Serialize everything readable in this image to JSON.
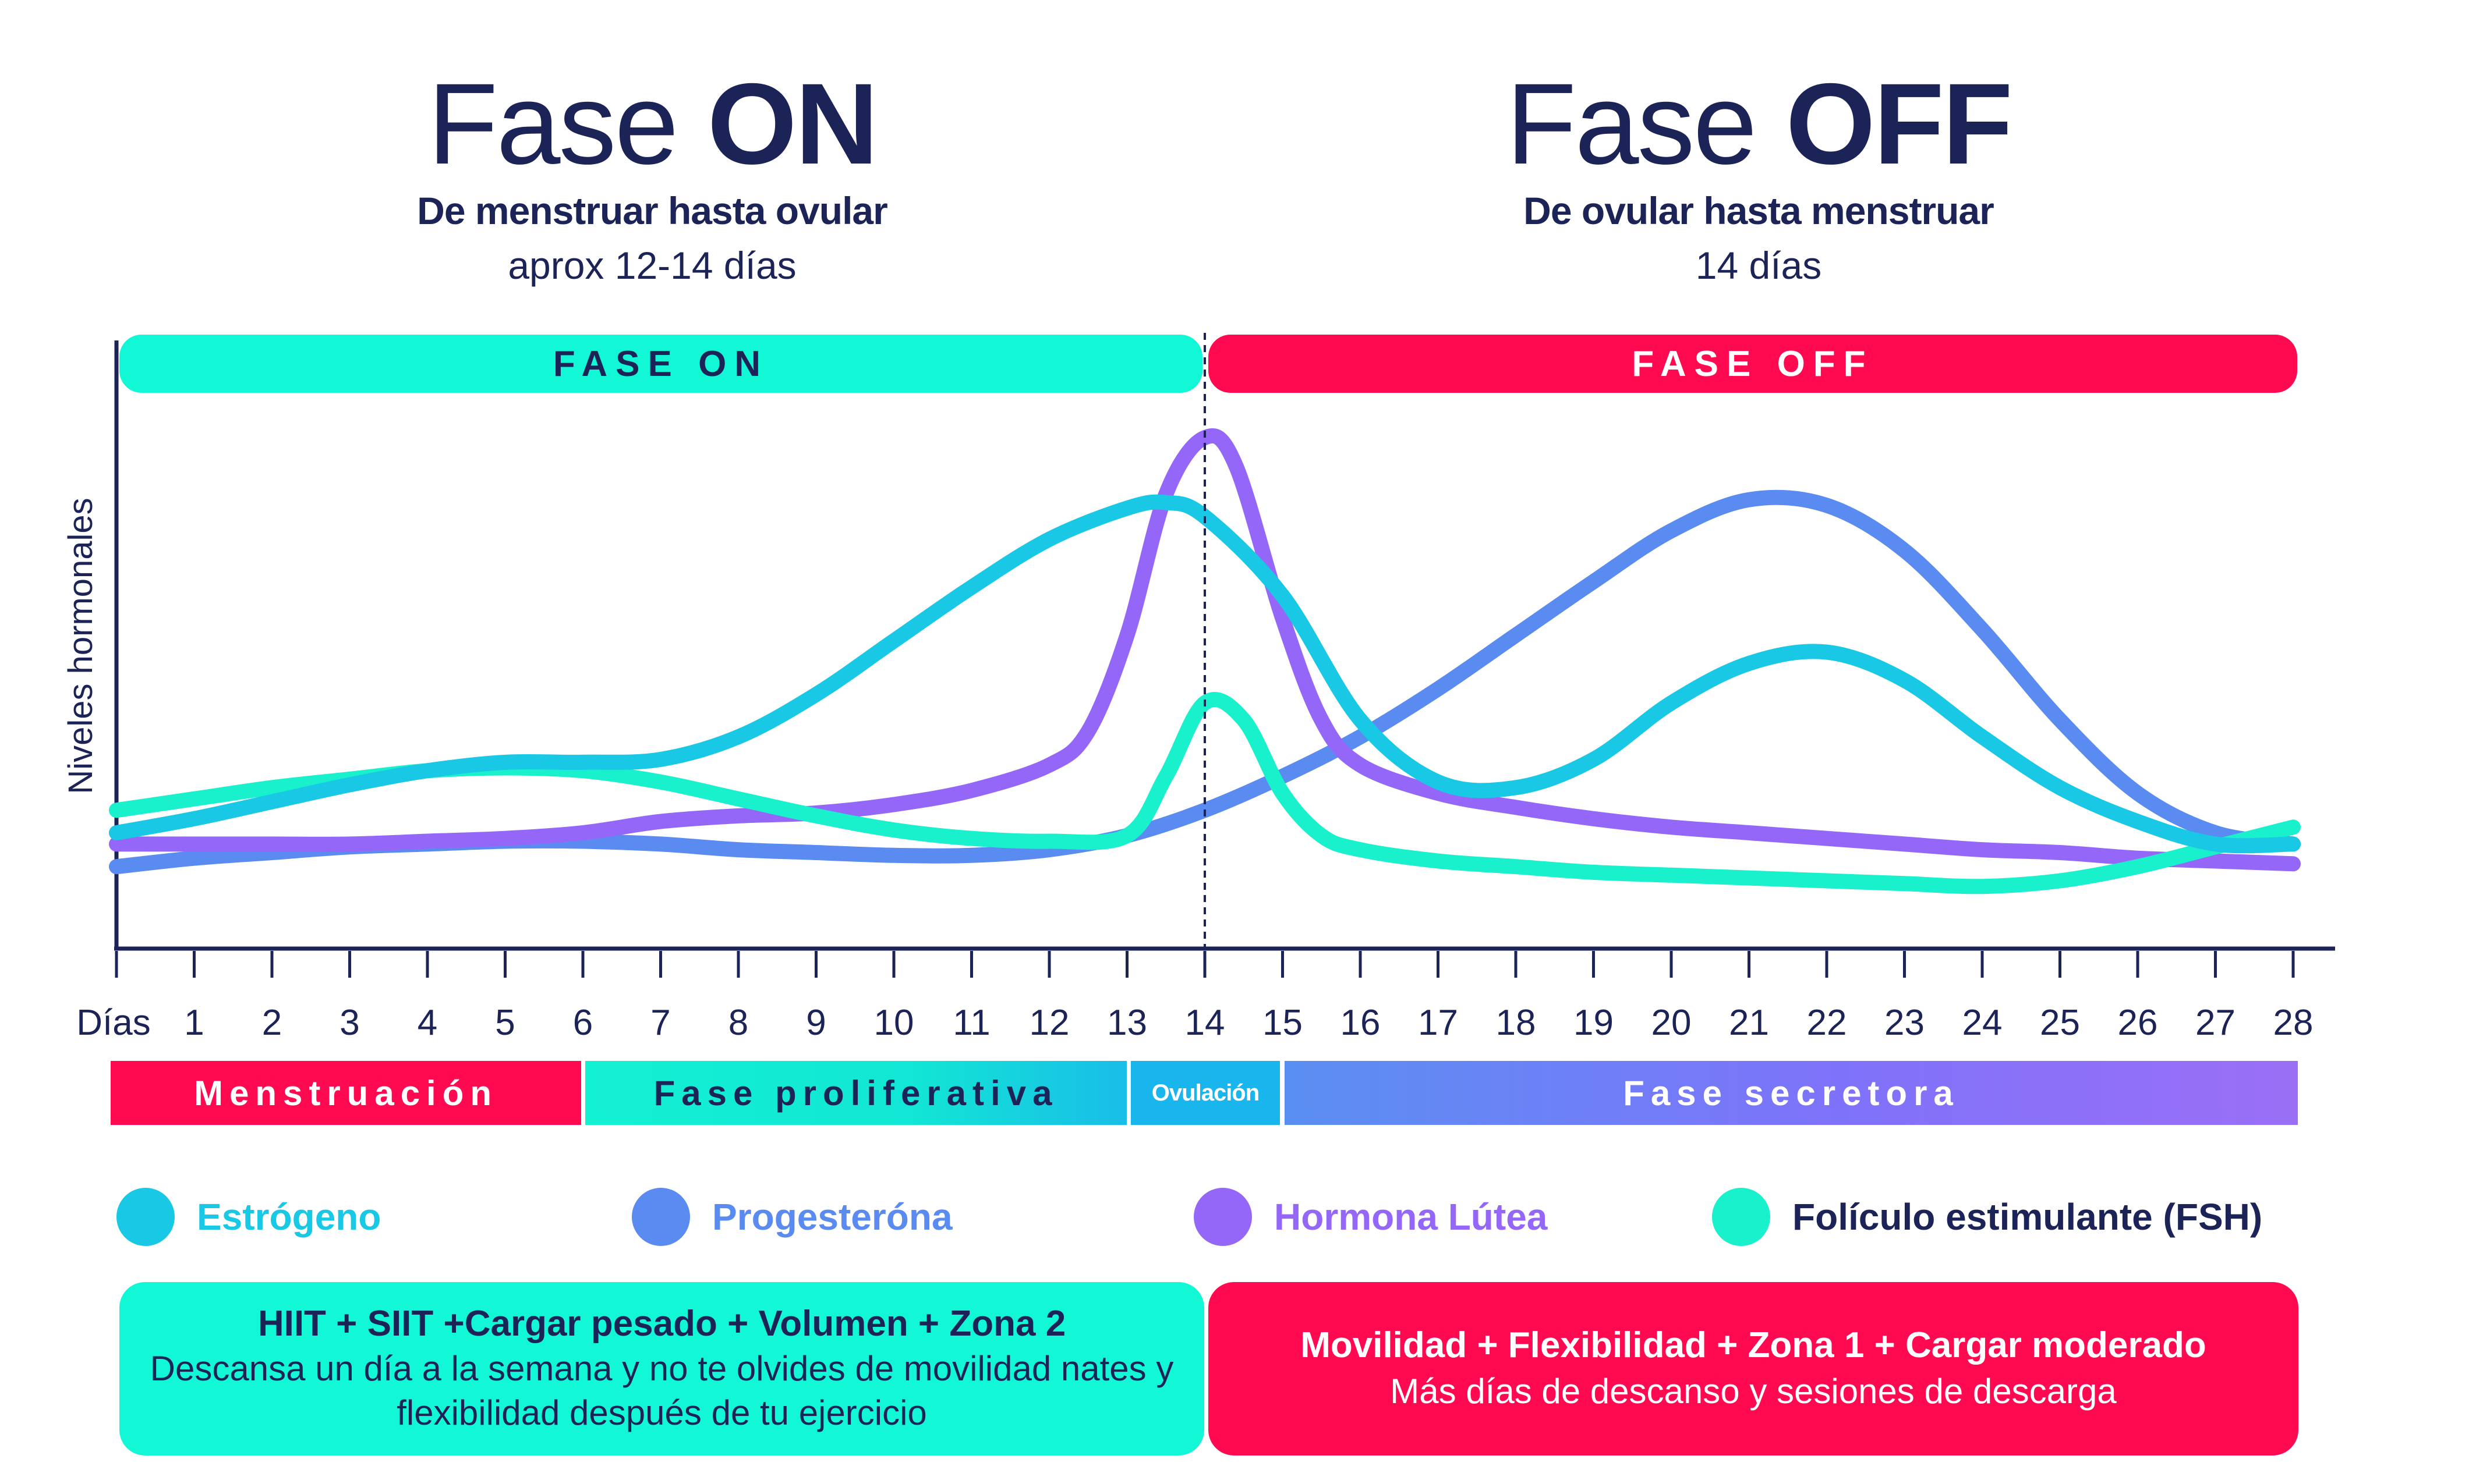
{
  "header_on": {
    "word": "Fase",
    "bold": "ON",
    "subtitle": "De menstruar  hasta ovular",
    "duration": "aprox 12-14 días"
  },
  "header_off": {
    "word": "Fase",
    "bold": "OFF",
    "subtitle": "De ovular hasta menstruar",
    "duration": "14 días"
  },
  "phase_bars": {
    "on_label": "FASE ON",
    "off_label": "FASE OFF"
  },
  "cycle_bars": [
    {
      "label": "Menstruación",
      "days": [
        1,
        6
      ],
      "color": "#ff0a50"
    },
    {
      "label": "Fase proliferativa",
      "days": [
        7,
        13
      ],
      "color": "#12f0d8"
    },
    {
      "label": "Ovulación",
      "days": [
        14,
        14
      ],
      "color": "#19b6ee"
    },
    {
      "label": "Fase secretora",
      "days": [
        15,
        28
      ],
      "color": "#7f72fa"
    }
  ],
  "legend": [
    {
      "label": "Estrógeno",
      "color": "#19c8e4",
      "icon": "circle-dot"
    },
    {
      "label": "Progesteróna",
      "color": "#5a8bf0",
      "icon": "circle-dot"
    },
    {
      "label": "Hormona Lútea",
      "color": "#9467f9",
      "icon": "circle-dot"
    },
    {
      "label": "Folículo estimulante (FSH)",
      "color": "#19f0cc",
      "icon": "circle-dot"
    }
  ],
  "recommendations": {
    "on": {
      "title": "HIIT + SIIT +Cargar pesado + Volumen + Zona 2",
      "text": "Descansa un día a la semana y no te olvides de movilidad nates y flexibilidad después de tu ejercicio"
    },
    "off": {
      "title": "Movilidad + Flexibilidad + Zona 1 + Cargar moderado",
      "text": "Más días de descanso y sesiones de descarga"
    }
  },
  "colors": {
    "navy": "#1c2457",
    "on": "#12f7d6",
    "off": "#ff0a50"
  },
  "chart_data": {
    "type": "line",
    "title": "",
    "xlabel": "Días",
    "ylabel": "Niveles hormonales",
    "x_ticks": [
      1,
      2,
      3,
      4,
      5,
      6,
      7,
      8,
      9,
      10,
      11,
      12,
      13,
      14,
      15,
      16,
      17,
      18,
      19,
      20,
      21,
      22,
      23,
      24,
      25,
      26,
      27,
      28
    ],
    "xlim": [
      0,
      28
    ],
    "ylim": [
      0,
      100
    ],
    "y_tick_labels": false,
    "grid": false,
    "legend": "bottom",
    "markers": [
      {
        "x": 14,
        "style": "dashed"
      }
    ],
    "series": [
      {
        "name": "Estrógeno",
        "color": "#19c8e4",
        "points": [
          [
            0,
            20
          ],
          [
            1,
            22.5
          ],
          [
            2,
            25.5
          ],
          [
            3,
            28.5
          ],
          [
            4,
            31
          ],
          [
            5,
            32.5
          ],
          [
            6,
            32.5
          ],
          [
            7,
            33
          ],
          [
            8,
            37
          ],
          [
            9,
            44.5
          ],
          [
            10,
            54
          ],
          [
            11,
            63.5
          ],
          [
            12,
            72
          ],
          [
            13,
            77.5
          ],
          [
            13.5,
            78.5
          ],
          [
            14,
            76
          ],
          [
            15,
            62
          ],
          [
            16,
            40
          ],
          [
            17,
            29
          ],
          [
            18,
            28
          ],
          [
            19,
            33
          ],
          [
            20,
            43
          ],
          [
            21,
            50
          ],
          [
            22,
            52
          ],
          [
            23,
            47
          ],
          [
            24,
            37
          ],
          [
            25,
            28
          ],
          [
            26,
            22
          ],
          [
            27,
            18
          ],
          [
            28,
            18
          ]
        ]
      },
      {
        "name": "Progesteróna",
        "color": "#5a8bf0",
        "points": [
          [
            0,
            14
          ],
          [
            1,
            15.5
          ],
          [
            2,
            16.5
          ],
          [
            3,
            17.5
          ],
          [
            4,
            18
          ],
          [
            5,
            18.5
          ],
          [
            6,
            18.5
          ],
          [
            7,
            18
          ],
          [
            8,
            17
          ],
          [
            9,
            16.5
          ],
          [
            10,
            16
          ],
          [
            11,
            16
          ],
          [
            12,
            17
          ],
          [
            13,
            19.5
          ],
          [
            14,
            24
          ],
          [
            15,
            30
          ],
          [
            16,
            37
          ],
          [
            17,
            45.5
          ],
          [
            18,
            55
          ],
          [
            19,
            64.5
          ],
          [
            20,
            73.5
          ],
          [
            21,
            79
          ],
          [
            22,
            78
          ],
          [
            23,
            70
          ],
          [
            24,
            56
          ],
          [
            25,
            40
          ],
          [
            26,
            27
          ],
          [
            27,
            20
          ],
          [
            28,
            18
          ]
        ]
      },
      {
        "name": "Hormona Lútea",
        "color": "#9467f9",
        "points": [
          [
            0,
            18
          ],
          [
            1,
            18
          ],
          [
            2,
            18
          ],
          [
            3,
            18
          ],
          [
            4,
            18.5
          ],
          [
            5,
            19
          ],
          [
            6,
            20
          ],
          [
            7,
            22
          ],
          [
            8,
            23
          ],
          [
            9,
            23.5
          ],
          [
            10,
            25
          ],
          [
            11,
            27.5
          ],
          [
            12,
            32
          ],
          [
            12.5,
            38
          ],
          [
            13,
            55
          ],
          [
            13.5,
            80
          ],
          [
            14,
            90
          ],
          [
            14.4,
            85
          ],
          [
            15,
            58
          ],
          [
            15.5,
            40
          ],
          [
            16,
            32
          ],
          [
            17,
            27
          ],
          [
            18,
            24.5
          ],
          [
            19,
            22.5
          ],
          [
            20,
            21
          ],
          [
            21,
            20
          ],
          [
            22,
            19
          ],
          [
            23,
            18
          ],
          [
            24,
            17
          ],
          [
            25,
            16.5
          ],
          [
            26,
            15.5
          ],
          [
            27,
            15
          ],
          [
            28,
            14.5
          ]
        ]
      },
      {
        "name": "Folículo estimulante (FSH)",
        "color": "#19f0cc",
        "points": [
          [
            0,
            24
          ],
          [
            1,
            26
          ],
          [
            2,
            28
          ],
          [
            3,
            29.5
          ],
          [
            4,
            31
          ],
          [
            5,
            31.5
          ],
          [
            6,
            31
          ],
          [
            7,
            29
          ],
          [
            8,
            26
          ],
          [
            9,
            23
          ],
          [
            10,
            20.5
          ],
          [
            11,
            19
          ],
          [
            12,
            18.5
          ],
          [
            13,
            19.5
          ],
          [
            13.5,
            30
          ],
          [
            14,
            43
          ],
          [
            14.5,
            40
          ],
          [
            15,
            27
          ],
          [
            15.5,
            19.5
          ],
          [
            16,
            17
          ],
          [
            17,
            15
          ],
          [
            18,
            14
          ],
          [
            19,
            13
          ],
          [
            20,
            12.5
          ],
          [
            21,
            12
          ],
          [
            22,
            11.5
          ],
          [
            23,
            11
          ],
          [
            24,
            10.5
          ],
          [
            25,
            11.5
          ],
          [
            26,
            14
          ],
          [
            27,
            17.5
          ],
          [
            28,
            21
          ]
        ]
      }
    ]
  }
}
